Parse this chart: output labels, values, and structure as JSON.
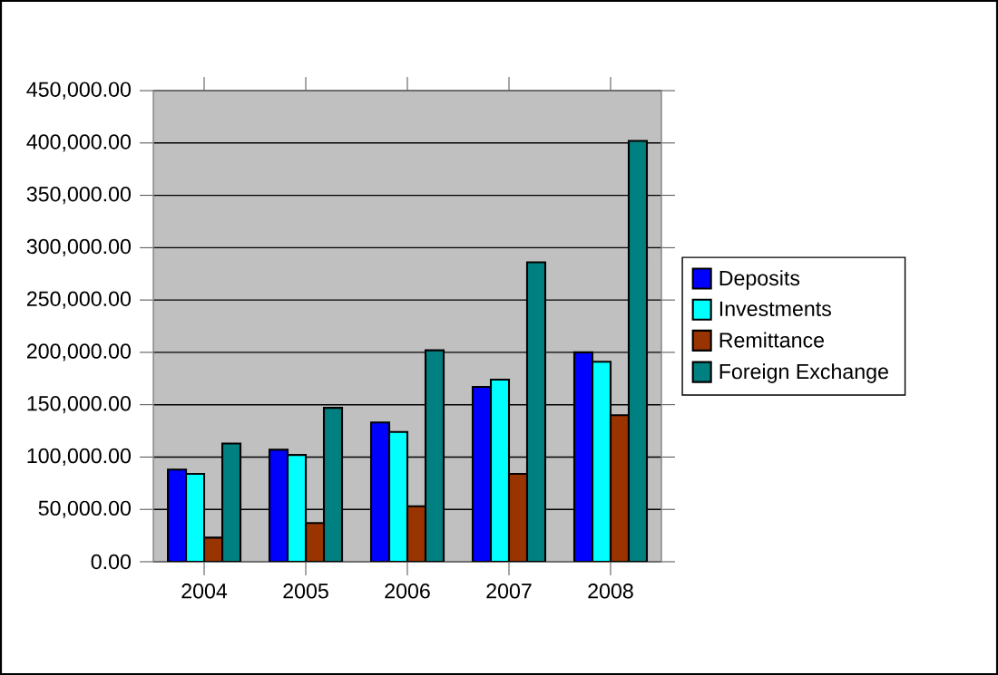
{
  "chart_data": {
    "type": "bar",
    "categories": [
      "2004",
      "2005",
      "2006",
      "2007",
      "2008"
    ],
    "series": [
      {
        "name": "Deposits",
        "color": "#0000ff",
        "values": [
          88000,
          107000,
          133000,
          167000,
          200000
        ]
      },
      {
        "name": "Investments",
        "color": "#00ffff",
        "values": [
          84000,
          102000,
          124000,
          174000,
          191000
        ]
      },
      {
        "name": "Remittance",
        "color": "#993300",
        "values": [
          23000,
          37000,
          53000,
          84000,
          140000
        ]
      },
      {
        "name": "Foreign Exchange",
        "color": "#008080",
        "values": [
          113000,
          147000,
          202000,
          286000,
          402000
        ]
      }
    ],
    "ylim": [
      0,
      450000
    ],
    "yticks": [
      {
        "value": 0,
        "label": "0.00"
      },
      {
        "value": 50000,
        "label": "50,000.00"
      },
      {
        "value": 100000,
        "label": "100,000.00"
      },
      {
        "value": 150000,
        "label": "150,000.00"
      },
      {
        "value": 200000,
        "label": "200,000.00"
      },
      {
        "value": 250000,
        "label": "250,000.00"
      },
      {
        "value": 300000,
        "label": "300,000.00"
      },
      {
        "value": 350000,
        "label": "350,000.00"
      },
      {
        "value": 400000,
        "label": "400,000.00"
      },
      {
        "value": 450000,
        "label": "450,000.00"
      }
    ],
    "grid": "y",
    "legend": "right"
  }
}
